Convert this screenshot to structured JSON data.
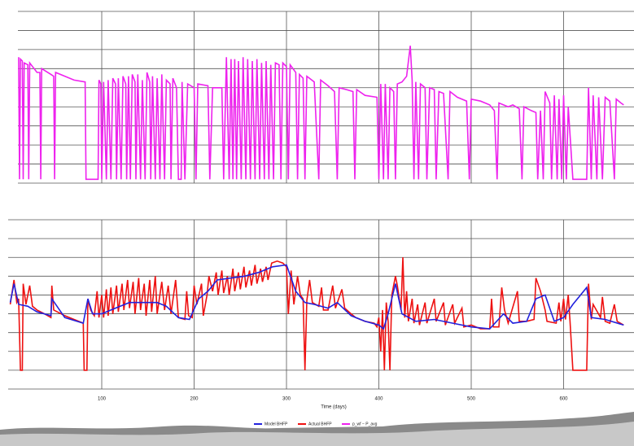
{
  "chart_data": [
    {
      "type": "line",
      "xlim": [
        10,
        676
      ],
      "ylim": [
        0,
        9
      ],
      "xticks": [
        100,
        200,
        300,
        400,
        500,
        600
      ],
      "yticks": [
        0,
        1,
        2,
        3,
        4,
        5,
        6,
        7,
        8,
        9
      ],
      "grid": true,
      "x": [
        10,
        11,
        12,
        14,
        15,
        16,
        20,
        21,
        22,
        30,
        33,
        34,
        35,
        45,
        48,
        49,
        50,
        70,
        82,
        83,
        96,
        97,
        99,
        100,
        102,
        105,
        107,
        110,
        112,
        115,
        116,
        118,
        121,
        123,
        126,
        127,
        129,
        131,
        133,
        136,
        137,
        139,
        142,
        144,
        147,
        149,
        152,
        153,
        155,
        158,
        160,
        163,
        165,
        168,
        170,
        174,
        175,
        177,
        181,
        183,
        186,
        187,
        190,
        193,
        200,
        202,
        204,
        215,
        217,
        220,
        230,
        232,
        235,
        238,
        240,
        242,
        244,
        246,
        248,
        251,
        253,
        256,
        258,
        261,
        263,
        266,
        268,
        271,
        273,
        276,
        278,
        281,
        283,
        286,
        288,
        292,
        294,
        296,
        300,
        302,
        304,
        310,
        312,
        314,
        318,
        320,
        322,
        330,
        335,
        337,
        345,
        352,
        355,
        357,
        365,
        372,
        374,
        376,
        385,
        398,
        400,
        402,
        405,
        407,
        410,
        412,
        416,
        418,
        420,
        425,
        430,
        434,
        436,
        438,
        440,
        443,
        445,
        450,
        452,
        455,
        460,
        462,
        465,
        470,
        475,
        477,
        485,
        495,
        498,
        500,
        510,
        520,
        525,
        528,
        530,
        540,
        545,
        552,
        555,
        557,
        565,
        570,
        572,
        575,
        578,
        580,
        585,
        587,
        590,
        593,
        595,
        598,
        600,
        603,
        605,
        610,
        625,
        627,
        630,
        632,
        636,
        638,
        642,
        645,
        650,
        655,
        657,
        662,
        665
      ],
      "series": [
        {
          "name": "p_wf − P_avg",
          "color": "#ee22ee",
          "values": [
            6.6,
            0.2,
            6.5,
            6.4,
            0.2,
            6.3,
            6.2,
            0.2,
            6.3,
            5.8,
            5.8,
            0.2,
            6.0,
            5.7,
            5.6,
            0.2,
            5.8,
            5.4,
            5.3,
            0.2,
            0.2,
            5.4,
            5.2,
            0.2,
            5.3,
            0.2,
            5.4,
            0.2,
            5.5,
            5.2,
            0.2,
            5.5,
            0.2,
            5.6,
            5.2,
            0.2,
            5.6,
            0.2,
            5.7,
            5.3,
            0.2,
            5.7,
            0.2,
            5.4,
            0.2,
            5.8,
            5.3,
            0.2,
            5.6,
            0.2,
            5.5,
            0.2,
            5.7,
            0.2,
            5.4,
            5.2,
            0.2,
            5.5,
            5.0,
            0.2,
            0.2,
            5.3,
            0.2,
            5.2,
            5.0,
            0.2,
            5.2,
            5.1,
            0.2,
            5.0,
            5.0,
            0.2,
            6.6,
            0.2,
            6.5,
            0.2,
            6.5,
            0.2,
            6.4,
            0.2,
            6.6,
            0.2,
            6.5,
            0.2,
            6.4,
            0.2,
            6.5,
            0.2,
            6.3,
            0.2,
            6.4,
            0.2,
            6.2,
            0.2,
            6.3,
            6.2,
            0.2,
            6.3,
            6.1,
            0.2,
            6.2,
            5.8,
            0.2,
            5.7,
            5.5,
            0.2,
            5.6,
            5.3,
            0.2,
            5.4,
            5.1,
            4.8,
            0.2,
            5.0,
            4.9,
            4.8,
            0.2,
            4.9,
            4.6,
            4.5,
            0.2,
            5.2,
            0.2,
            5.2,
            0.2,
            5.0,
            4.8,
            0.2,
            5.2,
            5.3,
            5.6,
            7.2,
            5.4,
            0.2,
            5.3,
            0.2,
            5.2,
            5.0,
            0.2,
            5.0,
            4.9,
            0.2,
            4.8,
            4.7,
            0.2,
            4.8,
            4.5,
            4.3,
            0.2,
            4.4,
            4.3,
            4.1,
            3.8,
            0.2,
            4.2,
            4.0,
            4.1,
            3.9,
            0.2,
            4.0,
            3.8,
            3.7,
            0.2,
            3.8,
            0.2,
            4.8,
            4.2,
            0.2,
            4.6,
            0.2,
            4.4,
            0.2,
            4.6,
            0.2,
            4.0,
            0.2,
            0.2,
            5.0,
            0.2,
            4.6,
            0.2,
            4.5,
            0.2,
            4.5,
            4.3,
            0.2,
            4.4,
            4.2,
            4.1
          ]
        }
      ]
    },
    {
      "type": "line",
      "xlim": [
        10,
        676
      ],
      "ylim": [
        0,
        9
      ],
      "xticks": [
        100,
        200,
        300,
        400,
        500,
        600
      ],
      "yticks": [
        0,
        1,
        2,
        3,
        4,
        5,
        6,
        7,
        8,
        9
      ],
      "grid": true,
      "xlabel": "Time (days)",
      "series": [
        {
          "name": "Actual BHFP",
          "color": "#ee1111",
          "x": [
            1,
            5,
            8,
            10,
            12,
            14,
            15,
            18,
            22,
            25,
            30,
            38,
            45,
            46,
            48,
            60,
            70,
            80,
            81,
            84,
            85,
            88,
            92,
            95,
            97,
            100,
            102,
            105,
            107,
            110,
            112,
            116,
            118,
            122,
            124,
            128,
            130,
            134,
            136,
            140,
            142,
            146,
            148,
            152,
            154,
            158,
            160,
            165,
            168,
            172,
            175,
            180,
            183,
            190,
            192,
            194,
            198,
            200,
            203,
            208,
            210,
            214,
            216,
            220,
            224,
            226,
            230,
            232,
            236,
            238,
            242,
            244,
            248,
            250,
            254,
            256,
            260,
            262,
            266,
            268,
            272,
            274,
            278,
            280,
            284,
            290,
            296,
            300,
            302,
            305,
            308,
            312,
            315,
            318,
            320,
            322,
            325,
            328,
            335,
            338,
            340,
            345,
            350,
            353,
            360,
            363,
            370,
            375,
            385,
            395,
            398,
            400,
            402,
            404,
            406,
            408,
            410,
            412,
            414,
            418,
            420,
            424,
            426,
            428,
            430,
            432,
            436,
            438,
            442,
            444,
            450,
            452,
            460,
            462,
            470,
            472,
            480,
            482,
            490,
            492,
            500,
            510,
            520,
            522,
            524,
            530,
            533,
            536,
            540,
            550,
            552,
            560,
            568,
            570,
            575,
            580,
            582,
            592,
            595,
            597,
            600,
            602,
            605,
            607,
            610,
            625,
            627,
            630,
            632,
            640,
            642,
            645,
            650,
            655,
            658,
            665
          ],
          "values": [
            4.5,
            5.8,
            4.6,
            4.8,
            1.0,
            1.0,
            5.6,
            4.5,
            5.5,
            4.4,
            4.2,
            4.0,
            3.8,
            5.5,
            4.2,
            3.9,
            3.7,
            3.5,
            1.0,
            1.0,
            4.8,
            4.2,
            3.9,
            5.2,
            3.8,
            5.0,
            3.8,
            5.3,
            3.9,
            5.4,
            4.0,
            5.5,
            4.1,
            5.6,
            4.2,
            5.8,
            4.3,
            5.7,
            4.0,
            5.9,
            4.2,
            5.6,
            3.9,
            5.8,
            4.1,
            6.0,
            4.0,
            5.7,
            4.2,
            5.5,
            4.0,
            5.8,
            3.8,
            3.7,
            5.2,
            3.9,
            3.8,
            5.5,
            4.5,
            5.6,
            3.9,
            5.0,
            6.0,
            5.2,
            6.2,
            5.0,
            6.3,
            5.1,
            6.0,
            5.0,
            6.4,
            5.2,
            6.2,
            5.3,
            6.5,
            5.4,
            6.3,
            5.5,
            6.6,
            5.6,
            6.4,
            5.7,
            6.5,
            5.8,
            6.7,
            6.8,
            6.7,
            6.5,
            4.0,
            6.3,
            4.5,
            6.0,
            5.0,
            4.8,
            1.0,
            4.7,
            5.8,
            4.6,
            4.4,
            5.4,
            4.2,
            4.2,
            5.5,
            4.3,
            5.3,
            4.3,
            4.0,
            3.8,
            3.6,
            3.5,
            3.3,
            3.8,
            2.0,
            4.2,
            1.0,
            4.6,
            3.6,
            1.0,
            5.0,
            6.0,
            5.5,
            4.2,
            7.0,
            3.8,
            5.2,
            3.6,
            4.8,
            3.5,
            4.5,
            3.4,
            4.6,
            3.5,
            4.8,
            3.6,
            4.6,
            3.4,
            4.5,
            3.5,
            4.3,
            3.3,
            3.4,
            3.2,
            3.2,
            4.8,
            3.3,
            3.3,
            5.4,
            4.2,
            3.5,
            5.2,
            3.6,
            3.6,
            3.7,
            5.9,
            5.2,
            4.2,
            3.6,
            3.5,
            4.6,
            3.6,
            4.8,
            3.7,
            5.0,
            3.6,
            1.0,
            1.0,
            5.6,
            3.7,
            4.5,
            3.8,
            4.9,
            3.6,
            3.5,
            4.5,
            3.6,
            3.4
          ]
        },
        {
          "name": "Model BHFP",
          "color": "#2222dd",
          "x": [
            1,
            5,
            10,
            20,
            30,
            45,
            46,
            60,
            80,
            85,
            90,
            100,
            110,
            120,
            130,
            140,
            150,
            160,
            170,
            183,
            195,
            205,
            215,
            225,
            240,
            255,
            270,
            285,
            300,
            310,
            320,
            330,
            345,
            355,
            370,
            385,
            400,
            405,
            410,
            418,
            425,
            440,
            460,
            480,
            500,
            520,
            535,
            545,
            560,
            570,
            580,
            590,
            600,
            610,
            625,
            630,
            645,
            665
          ],
          "values": [
            4.6,
            5.6,
            4.5,
            4.4,
            4.1,
            3.9,
            4.8,
            3.8,
            3.5,
            4.8,
            4.0,
            4.0,
            4.2,
            4.4,
            4.6,
            4.6,
            4.6,
            4.6,
            4.4,
            3.8,
            3.7,
            4.8,
            5.2,
            5.8,
            5.9,
            6.0,
            6.2,
            6.5,
            6.6,
            5.2,
            4.6,
            4.5,
            4.3,
            4.6,
            3.9,
            3.6,
            3.4,
            3.2,
            4.0,
            5.6,
            4.0,
            3.6,
            3.7,
            3.5,
            3.3,
            3.2,
            4.0,
            3.5,
            3.6,
            4.8,
            5.0,
            3.6,
            3.8,
            4.5,
            5.4,
            3.8,
            3.7,
            3.4
          ]
        }
      ]
    }
  ]
}
